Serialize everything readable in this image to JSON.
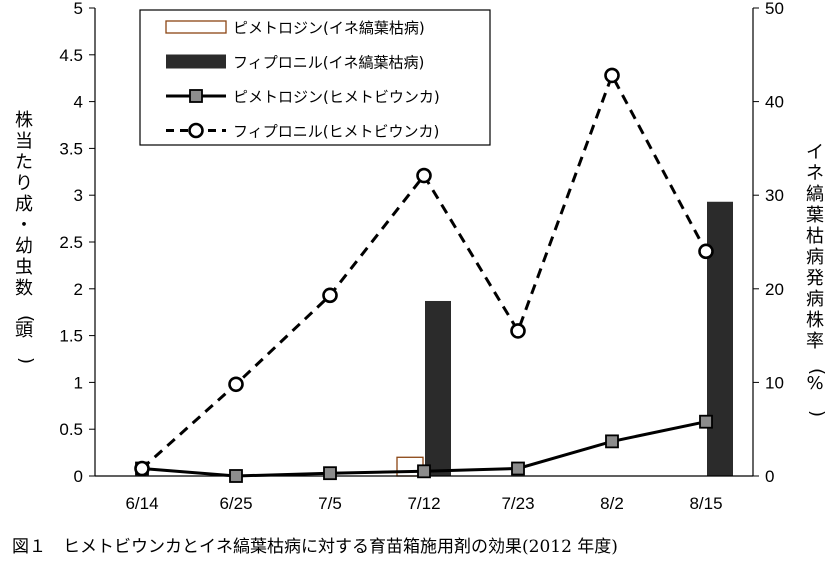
{
  "chart_data": {
    "type": "bar+line",
    "categories": [
      "6/14",
      "6/25",
      "7/5",
      "7/12",
      "7/23",
      "8/2",
      "8/15"
    ],
    "left_axis": {
      "label": "株当たり成・幼虫数(頭)",
      "range": [
        0,
        5
      ],
      "ticks": [
        "0",
        "0.5",
        "1",
        "1.5",
        "2",
        "2.5",
        "3",
        "3.5",
        "4",
        "4.5",
        "5"
      ]
    },
    "right_axis": {
      "label": "イネ縞葉枯病発病株率(%)",
      "range": [
        0,
        50
      ],
      "ticks": [
        "0",
        "10",
        "20",
        "30",
        "40",
        "50"
      ]
    },
    "series": [
      {
        "name": "ピメトロジン(イネ縞葉枯病)",
        "kind": "bar",
        "axis": "right",
        "style": "outline",
        "color": "#8B4513",
        "values": [
          0,
          0,
          0,
          2,
          0,
          0,
          0
        ]
      },
      {
        "name": "フィプロニル(イネ縞葉枯病)",
        "kind": "bar",
        "axis": "right",
        "style": "filled",
        "color": "#2b2b2b",
        "values": [
          0,
          0,
          0,
          18.7,
          0,
          0,
          29.3
        ]
      },
      {
        "name": "ピメトロジン(ヒメトビウンカ)",
        "kind": "line",
        "axis": "left",
        "style": "solid",
        "marker": "square",
        "color": "#000000",
        "values": [
          0.08,
          0.0,
          0.03,
          0.05,
          0.08,
          0.37,
          0.58
        ]
      },
      {
        "name": "フィプロニル(ヒメトビウンカ)",
        "kind": "line",
        "axis": "left",
        "style": "dashed",
        "marker": "circle",
        "color": "#000000",
        "values": [
          0.08,
          0.98,
          1.93,
          3.21,
          1.55,
          4.28,
          2.4
        ]
      }
    ],
    "legend_position": "top-left",
    "grid": false
  },
  "caption": "図１　ヒメトビウンカとイネ縞葉枯病に対する育苗箱施用剤の効果(2012 年度)"
}
